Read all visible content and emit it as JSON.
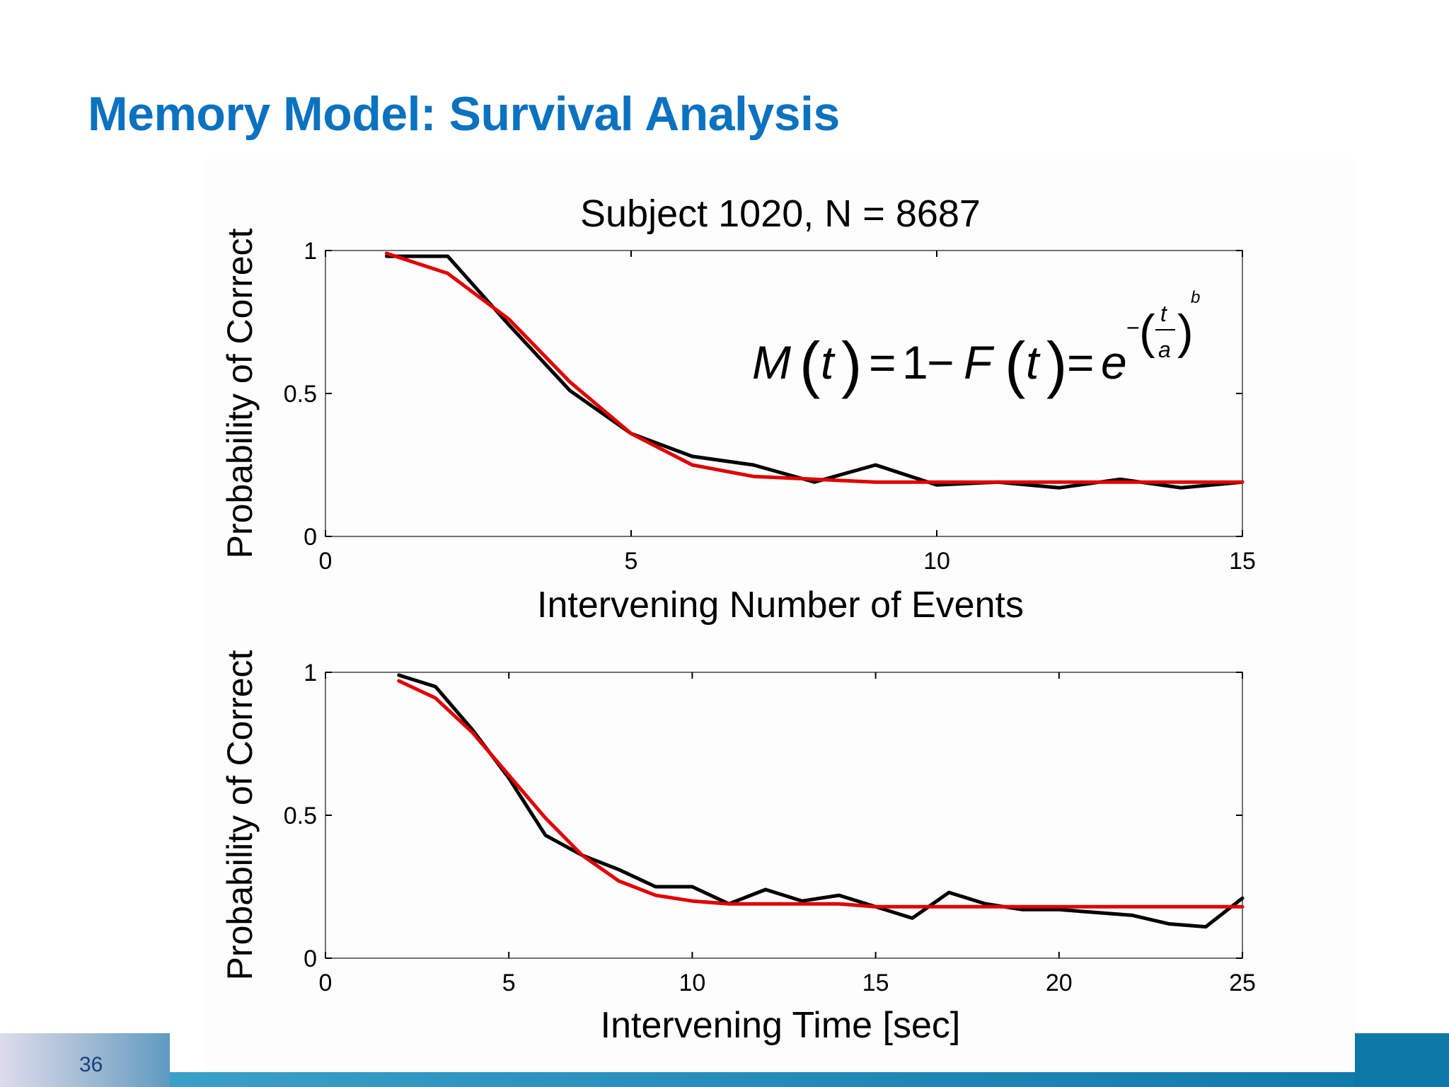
{
  "slide": {
    "title": "Memory Model: Survival Analysis",
    "page_number": "36"
  },
  "colors": {
    "title": "#0b72c0",
    "observed_line": "#000000",
    "fit_line": "#e00000",
    "footer_accent": "#0d78a8"
  },
  "chart_data": [
    {
      "type": "line",
      "title": "Subject 1020, N = 8687",
      "xlabel": "Intervening Number of Events",
      "ylabel": "Probability of Correct",
      "xlim": [
        0,
        15
      ],
      "ylim": [
        0,
        1
      ],
      "xticks": [
        0,
        5,
        10,
        15
      ],
      "yticks": [
        0,
        0.5,
        1
      ],
      "ytick_labels": [
        "0",
        "0.5",
        "1"
      ],
      "grid": false,
      "equation": {
        "lhs": "M",
        "var": "t",
        "one": "1",
        "cdf": "F",
        "base": "e",
        "minus": "−",
        "exp_num": "t",
        "exp_den": "a",
        "exp_power": "b"
      },
      "series": [
        {
          "color": "#000000",
          "x": [
            1,
            2,
            3,
            4,
            5,
            6,
            7,
            8,
            9,
            10,
            11,
            12,
            13,
            14,
            15
          ],
          "y": [
            0.98,
            0.98,
            0.74,
            0.51,
            0.36,
            0.28,
            0.25,
            0.19,
            0.25,
            0.18,
            0.19,
            0.17,
            0.2,
            0.17,
            0.19
          ]
        },
        {
          "color": "#e00000",
          "x": [
            1,
            2,
            3,
            4,
            5,
            6,
            7,
            8,
            9,
            10,
            11,
            12,
            13,
            14,
            15
          ],
          "y": [
            0.99,
            0.92,
            0.76,
            0.54,
            0.36,
            0.25,
            0.21,
            0.2,
            0.19,
            0.19,
            0.19,
            0.19,
            0.19,
            0.19,
            0.19
          ]
        }
      ]
    },
    {
      "type": "line",
      "xlabel": "Intervening Time [sec]",
      "ylabel": "Probability of Correct",
      "xlim": [
        0,
        25
      ],
      "ylim": [
        0,
        1
      ],
      "xticks": [
        0,
        5,
        10,
        15,
        20,
        25
      ],
      "yticks": [
        0,
        0.5,
        1
      ],
      "ytick_labels": [
        "0",
        "0.5",
        "1"
      ],
      "grid": false,
      "series": [
        {
          "color": "#000000",
          "x": [
            2,
            3,
            4,
            5,
            6,
            7,
            8,
            9,
            10,
            11,
            12,
            13,
            14,
            15,
            16,
            17,
            18,
            19,
            20,
            21,
            22,
            23,
            24,
            25
          ],
          "y": [
            0.99,
            0.95,
            0.8,
            0.63,
            0.43,
            0.36,
            0.31,
            0.25,
            0.25,
            0.19,
            0.24,
            0.2,
            0.22,
            0.18,
            0.14,
            0.23,
            0.19,
            0.17,
            0.17,
            0.16,
            0.15,
            0.12,
            0.11,
            0.21
          ]
        },
        {
          "color": "#e00000",
          "x": [
            2,
            3,
            4,
            5,
            6,
            7,
            8,
            9,
            10,
            11,
            12,
            13,
            14,
            15,
            16,
            17,
            18,
            19,
            20,
            21,
            22,
            23,
            24,
            25
          ],
          "y": [
            0.97,
            0.91,
            0.79,
            0.64,
            0.49,
            0.36,
            0.27,
            0.22,
            0.2,
            0.19,
            0.19,
            0.19,
            0.19,
            0.18,
            0.18,
            0.18,
            0.18,
            0.18,
            0.18,
            0.18,
            0.18,
            0.18,
            0.18,
            0.18
          ]
        }
      ]
    }
  ]
}
